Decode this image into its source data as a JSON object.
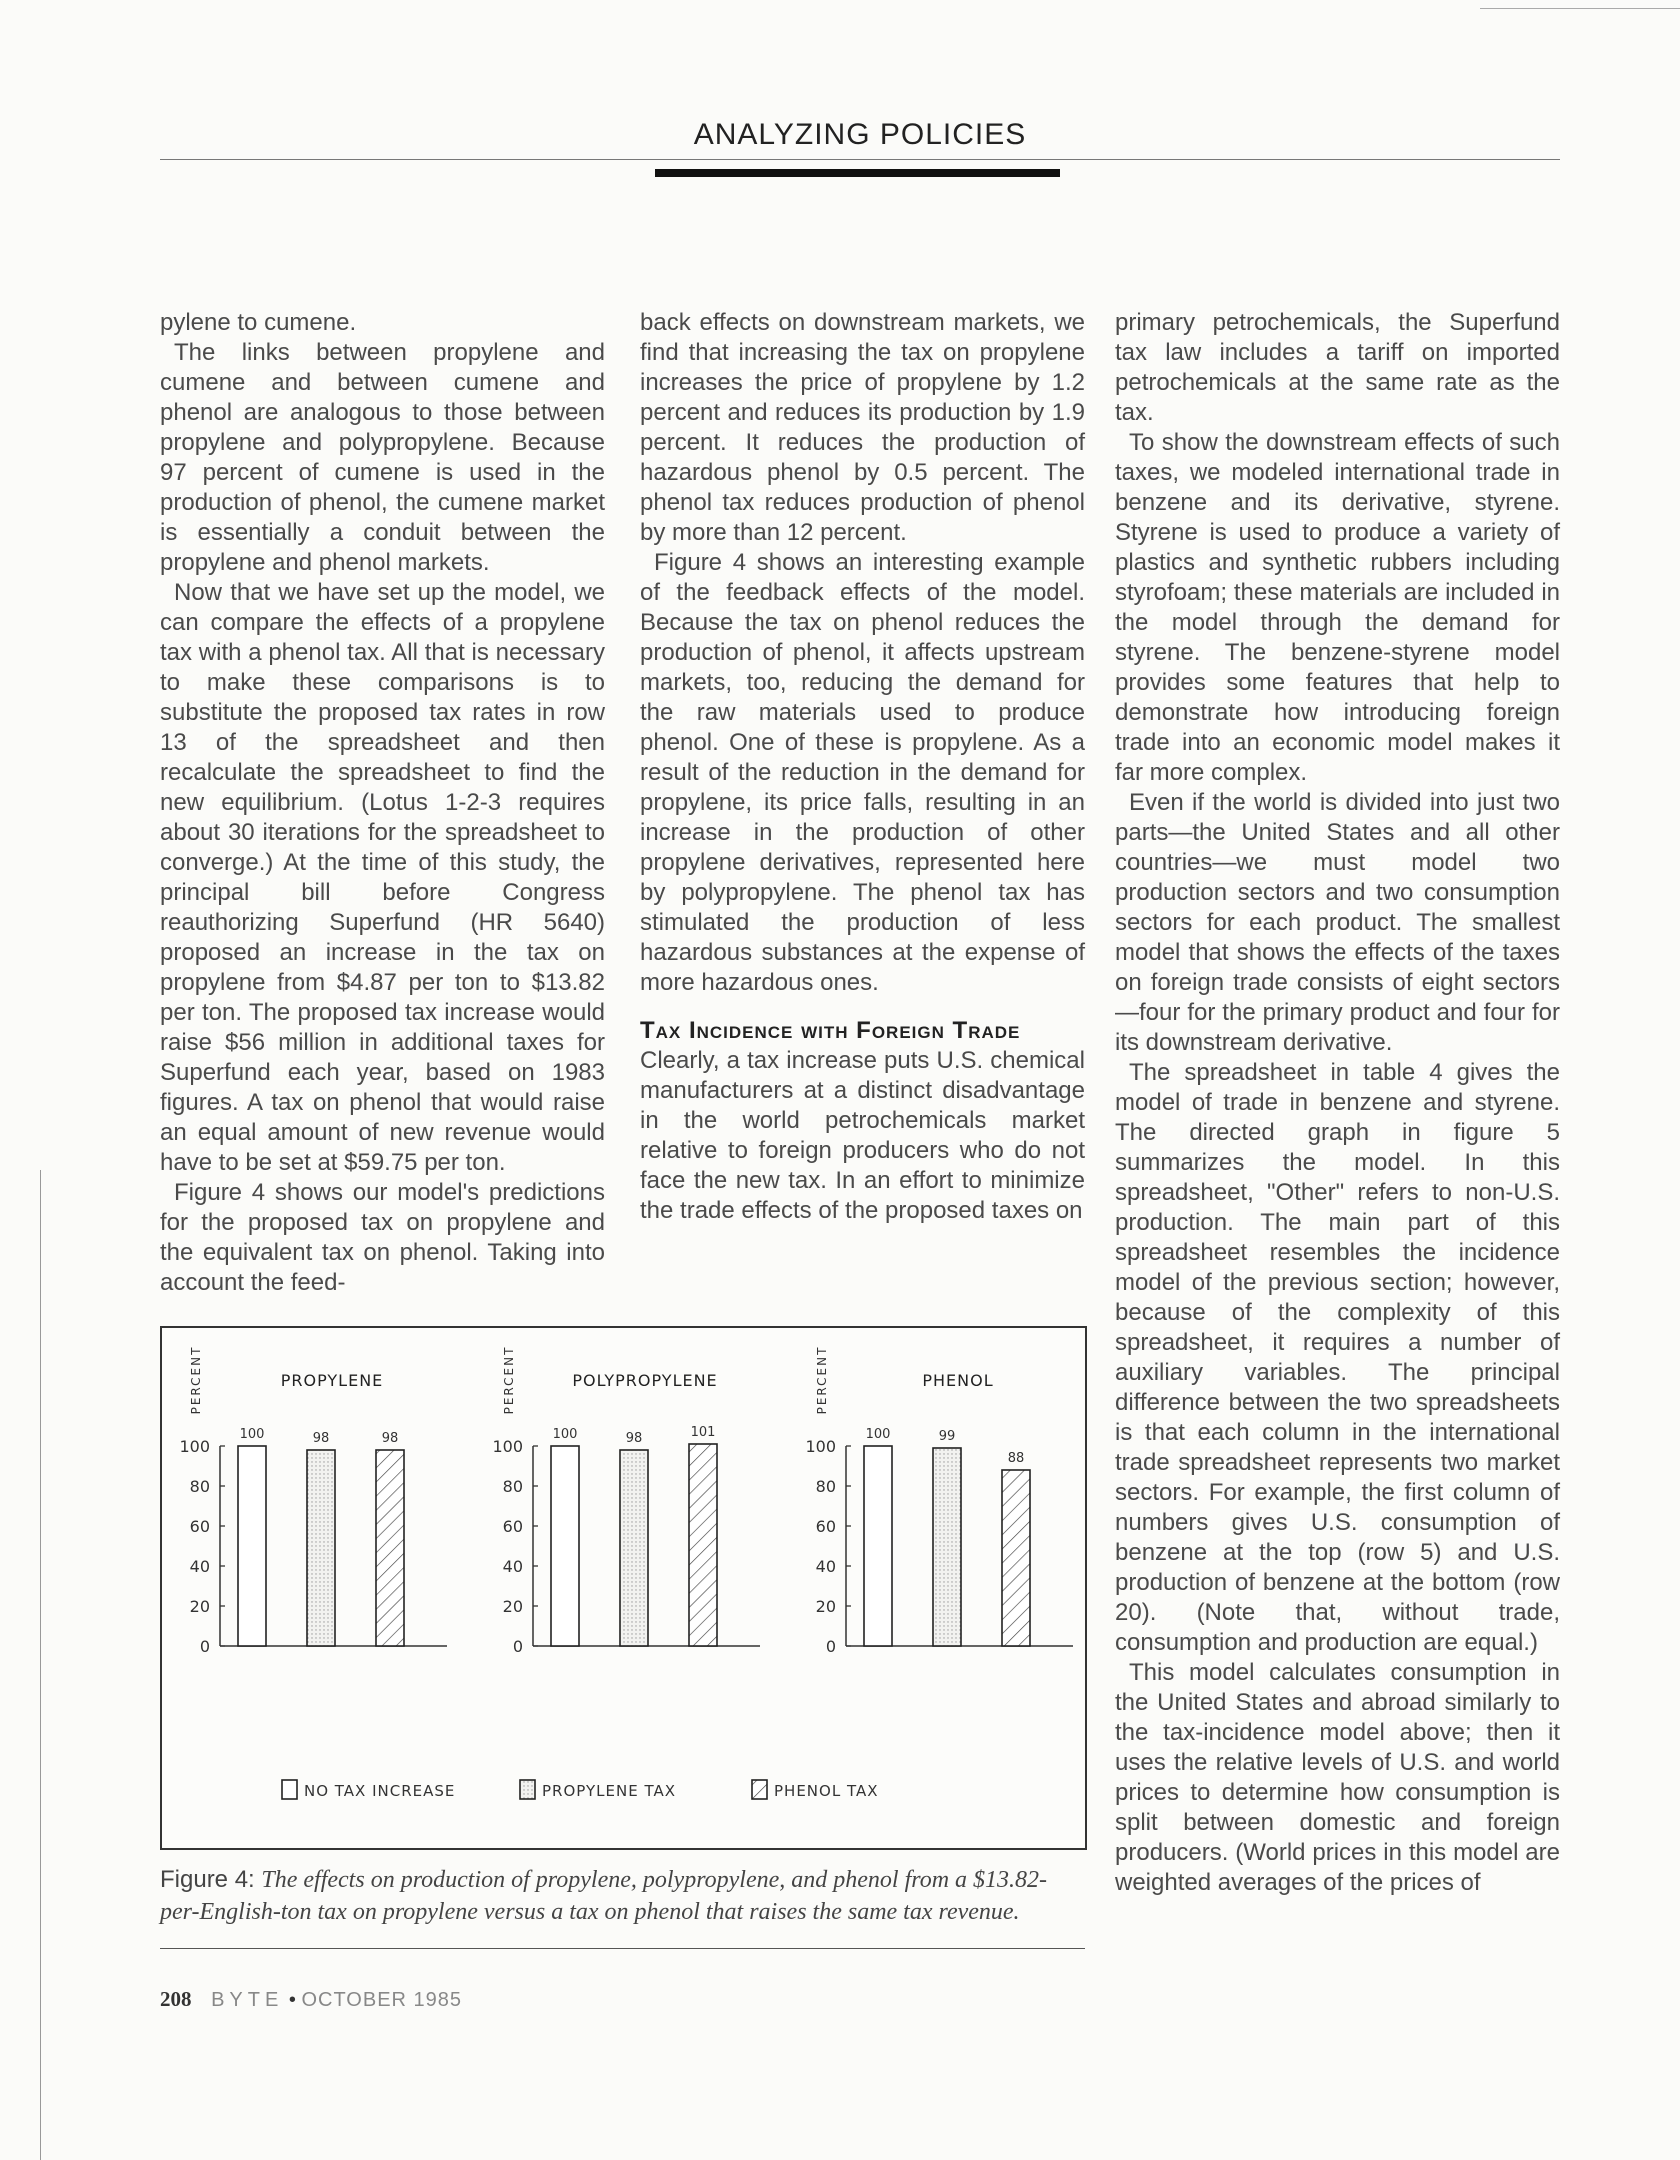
{
  "header": {
    "title": "ANALYZING POLICIES"
  },
  "columns": [
    {
      "paragraphs": [
        {
          "cont": true,
          "text": "pylene to cumene."
        },
        {
          "text": "The links between propylene and cumene and between cumene and phenol are analogous to those between propylene and polypropylene. Because 97 percent of cumene is used in the production of phenol, the cumene market is essentially a conduit between the propylene and phenol markets."
        },
        {
          "text": "Now that we have set up the model, we can compare the effects of a propylene tax with a phenol tax. All that is necessary to make these comparisons is to substitute the proposed tax rates in row 13 of the spreadsheet and then recalculate the spreadsheet to find the new equilibrium. (Lotus 1-2-3 requires about 30 iterations for the spreadsheet to converge.) At the time of this study, the principal bill before Congress reauthorizing Superfund (HR 5640) proposed an increase in the tax on propylene from $4.87 per ton to $13.82 per ton. The proposed tax increase would raise $56 million in additional taxes for Superfund each year, based on 1983 figures. A tax on phenol that would raise an equal amount of new revenue would have to be set at $59.75 per ton."
        },
        {
          "text": "Figure 4 shows our model's predictions for the proposed tax on propylene and the equivalent tax on phenol. Taking into account the feed-"
        }
      ]
    },
    {
      "paragraphs": [
        {
          "cont": true,
          "text": "back effects on downstream markets, we find that increasing the tax on propylene increases the price of propylene by 1.2 percent and reduces its production by 1.9 percent. It reduces the production of hazardous phenol by 0.5 percent. The phenol tax reduces production of phenol by more than 12 percent."
        },
        {
          "text": "Figure 4 shows an interesting example of the feedback effects of the model. Because the tax on phenol reduces the production of phenol, it affects upstream markets, too, reducing the demand for the raw materials used to produce phenol. One of these is propylene. As a result of the reduction in the demand for propylene, its price falls, resulting in an increase in the production of other propylene derivatives, represented here by polypropylene. The phenol tax has stimulated the production of less hazardous substances at the expense of more hazardous ones."
        }
      ],
      "heading": "Tax Incidence with Foreign Trade",
      "paragraphs2": [
        {
          "cont": true,
          "text": "Clearly, a tax increase puts U.S. chemical manufacturers at a distinct disadvantage in the world petrochemicals market relative to foreign producers who do not face the new tax. In an effort to minimize the trade effects of the proposed taxes on"
        }
      ]
    },
    {
      "paragraphs": [
        {
          "cont": true,
          "text": "primary petrochemicals, the Superfund tax law includes a tariff on imported petrochemicals at the same rate as the tax."
        },
        {
          "text": "To show the downstream effects of such taxes, we modeled international trade in benzene and its derivative, styrene. Styrene is used to produce a variety of plastics and synthetic rubbers including styrofoam; these materials are included in the model through the demand for styrene. The benzene-styrene model provides some features that help to demonstrate how introducing foreign trade into an economic model makes it far more complex."
        },
        {
          "text": "Even if the world is divided into just two parts—the United States and all other countries—we must model two production sectors and two consumption sectors for each product. The smallest model that shows the effects of the taxes on foreign trade consists of eight sectors—four for the primary product and four for its downstream derivative."
        },
        {
          "text": "The spreadsheet in table 4 gives the model of trade in benzene and styrene. The directed graph in figure 5 summarizes the model. In this spreadsheet, \"Other\" refers to non-U.S. production. The main part of this spreadsheet resembles the incidence model of the previous section; however, because of the complexity of this spreadsheet, it requires a number of auxiliary variables. The principal difference between the two spreadsheets is that each column in the international trade spreadsheet represents two market sectors. For example, the first column of numbers gives U.S. consumption of benzene at the top (row 5) and U.S. production of benzene at the bottom (row 20). (Note that, without trade, consumption and production are equal.)"
        },
        {
          "text": "This model calculates consumption in the United States and abroad similarly to the tax-incidence model above; then it uses the relative levels of U.S. and world prices to determine how consumption is split between domestic and foreign producers. (World prices in this model are weighted averages of the prices of"
        }
      ]
    }
  ],
  "chart_data": {
    "type": "bar",
    "ylabel": "PERCENT",
    "ylim": [
      0,
      100
    ],
    "yticks": [
      0,
      20,
      40,
      60,
      80,
      100
    ],
    "grid": false,
    "legend_placement": "bottom",
    "panels": [
      {
        "title": "PROPYLENE",
        "values": [
          100,
          98,
          98
        ]
      },
      {
        "title": "POLYPROPYLENE",
        "values": [
          100,
          98,
          101
        ]
      },
      {
        "title": "PHENOL",
        "values": [
          100,
          99,
          88
        ]
      }
    ],
    "series": [
      {
        "name": "NO TAX INCREASE",
        "pattern": "empty"
      },
      {
        "name": "PROPYLENE TAX",
        "pattern": "dotted"
      },
      {
        "name": "PHENOL TAX",
        "pattern": "hatched"
      }
    ]
  },
  "caption": {
    "label": "Figure 4:",
    "text": "The effects on production of propylene, polypropylene, and phenol from a $13.82-per-English-ton tax on propylene versus a tax on phenol that raises the same tax revenue."
  },
  "footer": {
    "page": "208",
    "magazine": "BYTE",
    "separator": "•",
    "date": "OCTOBER 1985"
  }
}
